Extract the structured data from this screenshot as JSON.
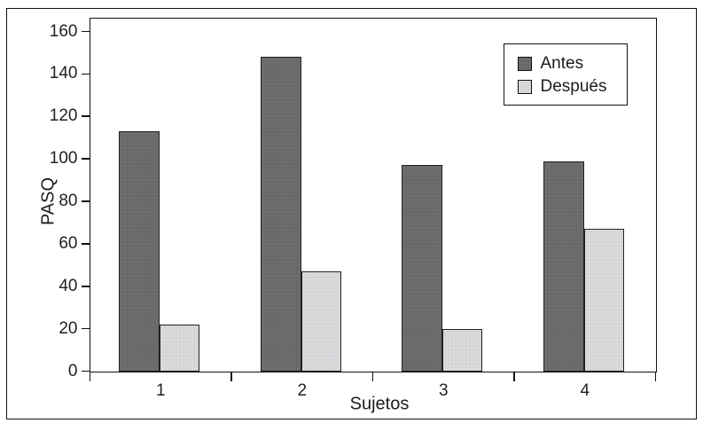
{
  "figure": {
    "background": "#ffffff",
    "frame_color": "#111111",
    "text_color": "#222222"
  },
  "chart_data": {
    "type": "bar",
    "title": "",
    "xlabel": "Sujetos",
    "ylabel": "PASQ",
    "categories": [
      "1",
      "2",
      "3",
      "4"
    ],
    "series": [
      {
        "name": "Antes",
        "color": "#6b6b6b",
        "values": [
          113,
          148,
          97,
          99
        ]
      },
      {
        "name": "Después",
        "color": "#d7d7d9",
        "values": [
          22,
          47,
          20,
          67
        ]
      }
    ],
    "ylim": [
      0,
      160
    ],
    "yticks": [
      0,
      20,
      40,
      60,
      80,
      100,
      120,
      140,
      160
    ],
    "grid": false,
    "legend_position": "upper-right",
    "legend_entries": [
      "Antes",
      "Después"
    ]
  }
}
